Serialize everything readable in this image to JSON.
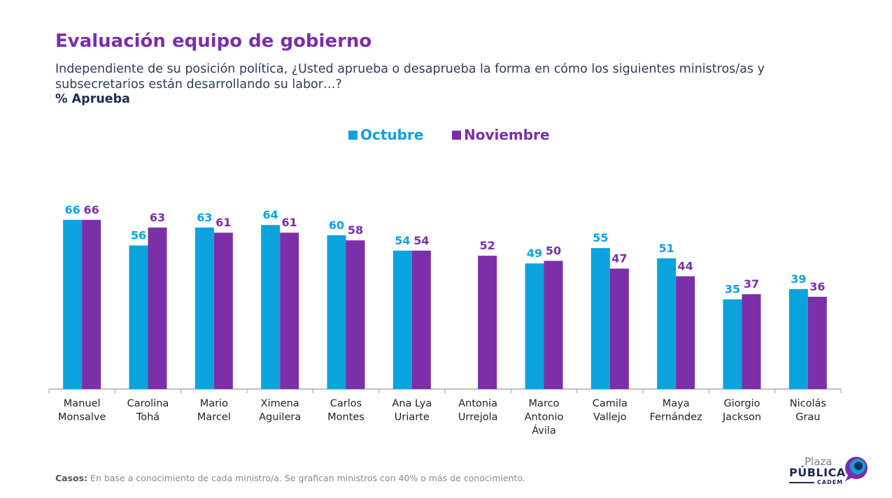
{
  "header": {
    "title": "Evaluación equipo de gobierno",
    "subtitle": "Independiente de su posición política, ¿Usted aprueba o desaprueba la forma en cómo los siguientes ministros/as y subsecretarios están desarrollando su labor…?",
    "measure": "% Aprueba"
  },
  "colors": {
    "octubre": "#0ba3dd",
    "noviembre": "#7b2fa8",
    "title": "#7b2fa8",
    "axis": "#9a9a9a",
    "label": "#222222"
  },
  "chart_data": {
    "type": "bar",
    "categories": [
      [
        "Manuel",
        "Monsalve"
      ],
      [
        "Carolina",
        "Tohá"
      ],
      [
        "Mario",
        "Marcel"
      ],
      [
        "Ximena",
        "Aguilera"
      ],
      [
        "Carlos",
        "Montes"
      ],
      [
        "Ana Lya",
        "Uriarte"
      ],
      [
        "Antonia",
        "Urrejola"
      ],
      [
        "Marco",
        "Antonio",
        "Ávila"
      ],
      [
        "Camila",
        "Vallejo"
      ],
      [
        "Maya",
        "Fernández"
      ],
      [
        "Giorgio",
        "Jackson"
      ],
      [
        "Nicolás",
        "Grau"
      ]
    ],
    "series": [
      {
        "name": "Octubre",
        "values": [
          66,
          56,
          63,
          64,
          60,
          54,
          null,
          49,
          55,
          51,
          35,
          39
        ]
      },
      {
        "name": "Noviembre",
        "values": [
          66,
          63,
          61,
          61,
          58,
          54,
          52,
          50,
          47,
          44,
          37,
          36
        ]
      }
    ],
    "ylim": [
      0,
      70
    ],
    "grid": false,
    "legend_position": "top-center",
    "data_labels": true
  },
  "footer": {
    "label": "Casos:",
    "text": " En base a conocimiento de cada ministro/a. Se grafican ministros con 40% o más de conocimiento."
  },
  "logo": {
    "line1": "Plaza",
    "line2": "PÚBLICA",
    "line3": "CADEM"
  }
}
